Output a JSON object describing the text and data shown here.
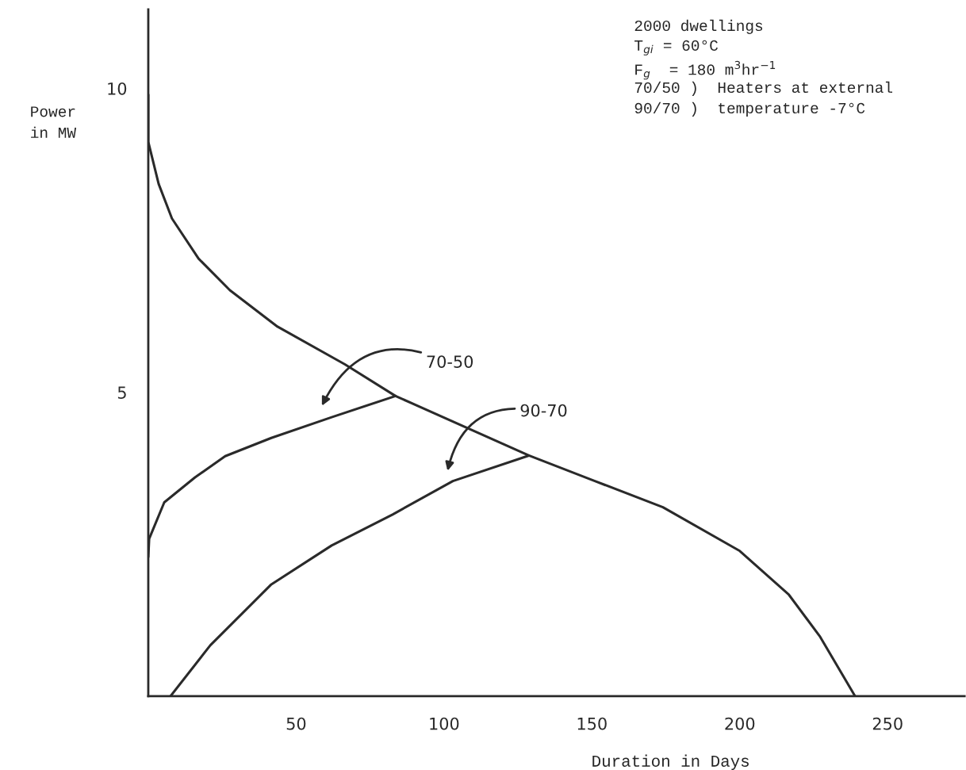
{
  "chart_data": {
    "type": "line",
    "xlabel": "Duration in Days",
    "ylabel": "Power\nin MW",
    "xlim": [
      0,
      276
    ],
    "ylim": [
      0,
      11.3
    ],
    "xticks": [
      50,
      100,
      150,
      200,
      250
    ],
    "yticks": [
      5,
      10
    ],
    "grid": false,
    "legend": false,
    "marker": "none",
    "line_style": "solid",
    "series": [
      {
        "color": "#2a2a2a",
        "x": [
          0,
          0,
          3.5,
          8,
          17,
          27.6,
          43.7,
          66.5,
          83.6,
          128.7,
          151,
          174,
          200,
          216.6,
          227,
          239
        ],
        "values": [
          9.9,
          9.12,
          8.43,
          7.86,
          7.2,
          6.68,
          6.08,
          5.46,
          4.94,
          3.96,
          3.54,
          3.11,
          2.39,
          1.67,
          0.99,
          0
        ]
      },
      {
        "color": "#2a2a2a",
        "x": [
          0,
          0.3,
          5.4,
          15.8,
          26,
          41.6,
          62,
          83.6
        ],
        "values": [
          2.29,
          2.59,
          3.19,
          3.6,
          3.95,
          4.25,
          4.59,
          4.94
        ]
      },
      {
        "color": "#2a2a2a",
        "x": [
          7.5,
          21,
          41.6,
          62,
          82.6,
          103,
          128.7
        ],
        "values": [
          0,
          0.84,
          1.84,
          2.48,
          2.99,
          3.54,
          3.96
        ]
      }
    ],
    "annotations": [
      "70-50",
      "90-70",
      "2000 dwellings",
      "T$_{gi}$ = 60°C",
      "F$_{g}$  = 180 m$^{3}$hr$^{−1}$",
      "70/50 )  Heaters at external",
      "90/70 )  temperature -7°C"
    ]
  }
}
